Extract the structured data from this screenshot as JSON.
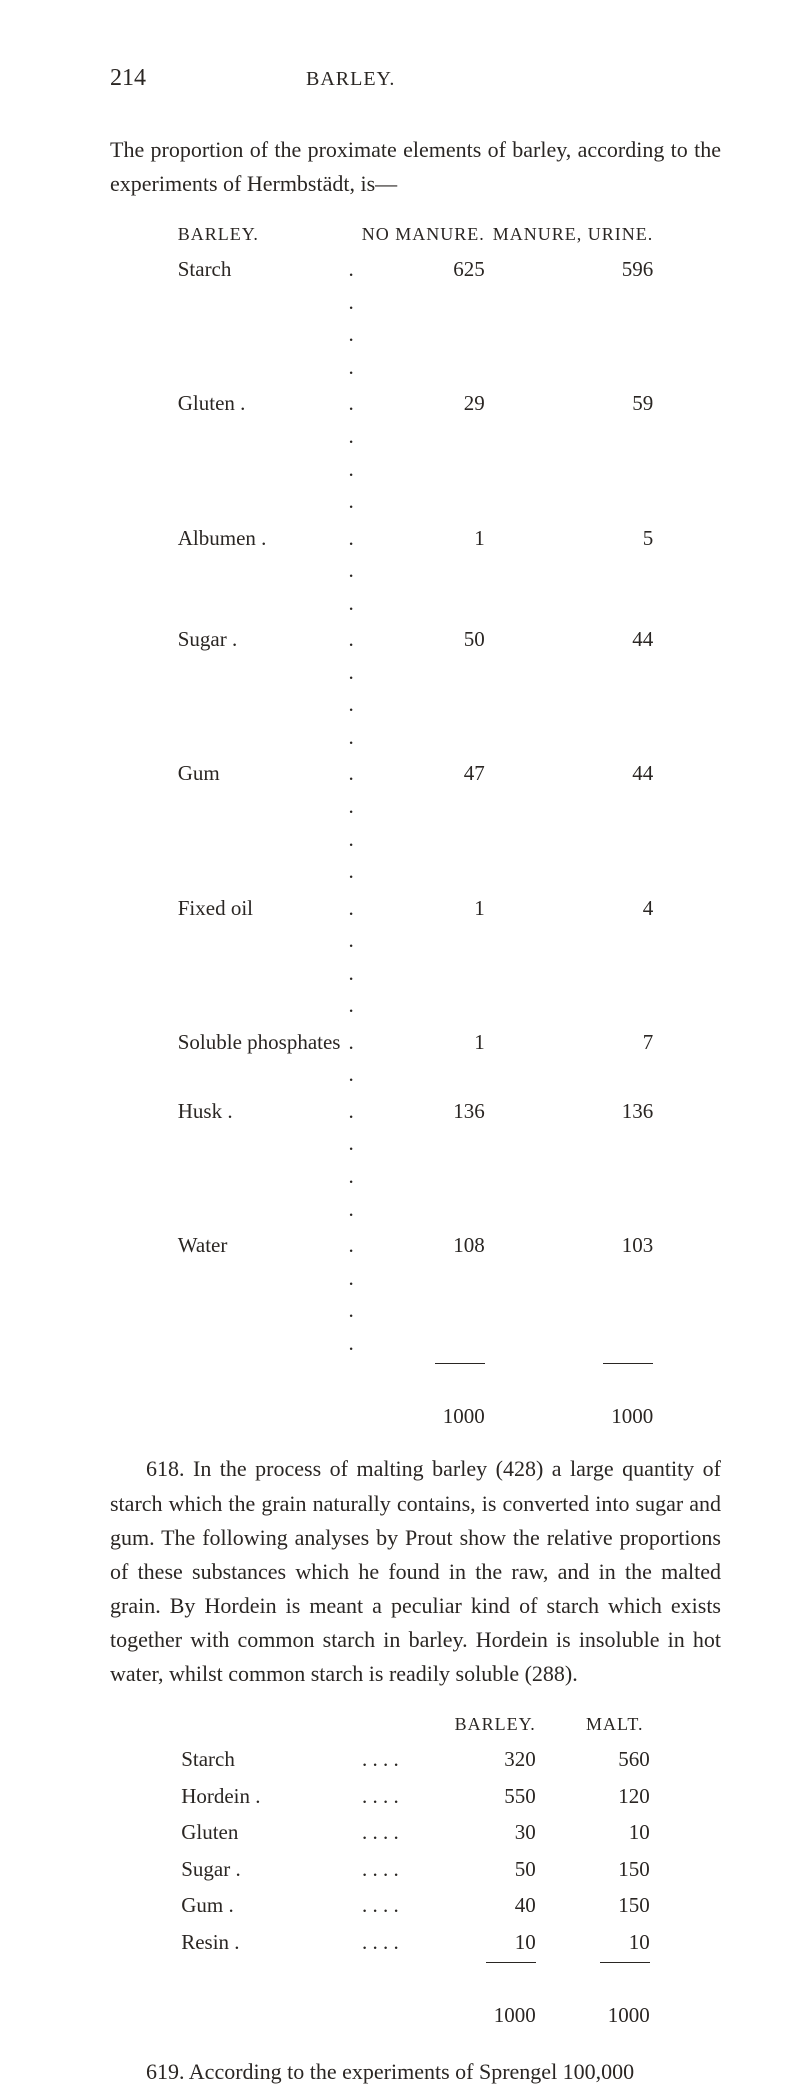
{
  "page_number": "214",
  "running_head": "BARLEY.",
  "p1": "The proportion of the proximate elements of barley, according to the experiments of Hermbstädt, is—",
  "t1": {
    "h_label": "BARLEY.",
    "h_c1": "NO MANURE.",
    "h_c2": "MANURE, URINE.",
    "rows": [
      {
        "label": "Starch",
        "dots": ".     .     .     .",
        "v1": "625",
        "v2": "596"
      },
      {
        "label": "Gluten .",
        "dots": ".     .     .     .",
        "v1": "29",
        "v2": "59"
      },
      {
        "label": "Albumen .",
        "dots": ".     .     .",
        "v1": "1",
        "v2": "5"
      },
      {
        "label": "Sugar .",
        "dots": ".     .     .     .",
        "v1": "50",
        "v2": "44"
      },
      {
        "label": "Gum",
        "dots": ".     .     .     .",
        "v1": "47",
        "v2": "44"
      },
      {
        "label": "Fixed oil",
        "dots": ".     .     .     .",
        "v1": "1",
        "v2": "4"
      },
      {
        "label": "Soluble phosphates",
        "dots": ".     .",
        "v1": "1",
        "v2": "7"
      },
      {
        "label": "Husk .",
        "dots": ".     .     .     .",
        "v1": "136",
        "v2": "136"
      },
      {
        "label": "Water",
        "dots": ".     .     .     .",
        "v1": "108",
        "v2": "103"
      }
    ],
    "total": {
      "v1": "1000",
      "v2": "1000"
    }
  },
  "p2": "618. In the process of malting barley (428) a large quantity of starch which the grain naturally contains, is converted into sugar and gum. The following analyses by Prout show the relative proportions of these sub­stances which he found in the raw, and in the malted grain. By Hordein is meant a peculiar kind of starch which exists together with common starch in barley. Hordein is insoluble in hot water, whilst common starch is readily soluble (288).",
  "t2": {
    "h_c1": "BARLEY.",
    "h_c2": "MALT.",
    "rows": [
      {
        "label": "Starch",
        "dots": ".     .     .     .",
        "v1": "320",
        "v2": "560"
      },
      {
        "label": "Hordein .",
        "dots": ".     .     .     .",
        "v1": "550",
        "v2": "120"
      },
      {
        "label": "Gluten",
        "dots": ".     .     .     .",
        "v1": "30",
        "v2": "10"
      },
      {
        "label": "Sugar .",
        "dots": ".     .     .     .",
        "v1": "50",
        "v2": "150"
      },
      {
        "label": "Gum .",
        "dots": ".     .     .     .",
        "v1": "40",
        "v2": "150"
      },
      {
        "label": "Resin .",
        "dots": ".     .     .     .",
        "v1": "10",
        "v2": "10"
      }
    ],
    "total": {
      "v1": "1000",
      "v2": "1000"
    }
  },
  "p3": "619. According to the experiments of Sprengel 100,000"
}
